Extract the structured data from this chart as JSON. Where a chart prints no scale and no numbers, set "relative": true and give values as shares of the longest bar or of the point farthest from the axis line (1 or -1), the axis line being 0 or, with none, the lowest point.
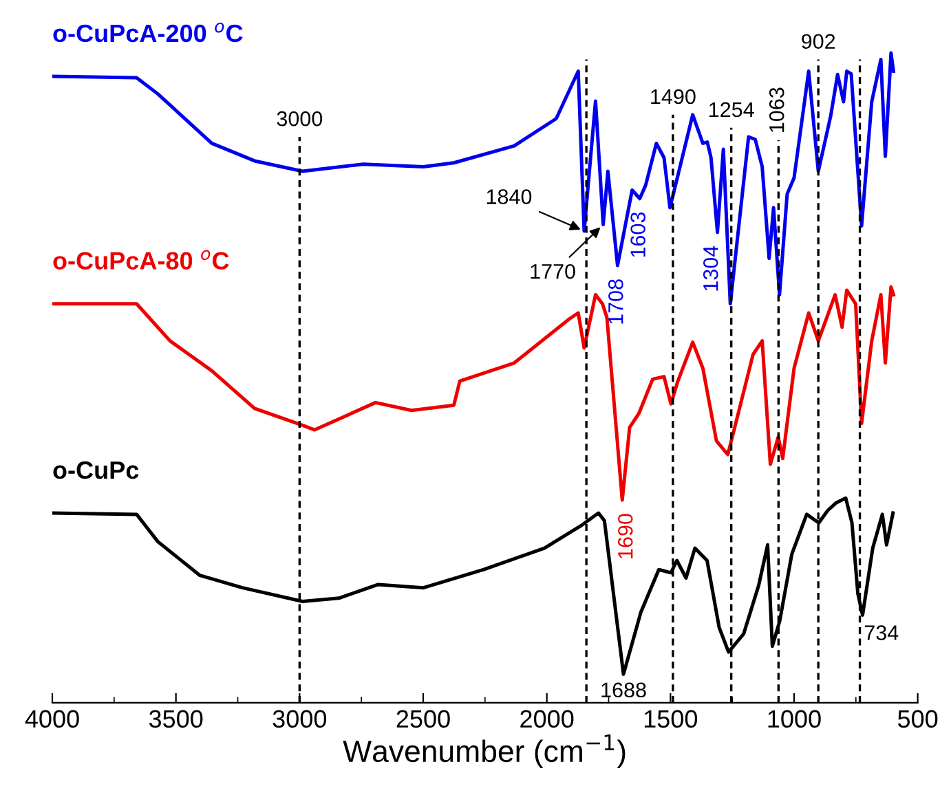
{
  "chart_data": {
    "type": "line",
    "relative": true,
    "xlabel": "Wavenumber (cm$^{−1}$)",
    "xlim": [
      4000,
      500
    ],
    "xticks": [
      4000,
      3500,
      3000,
      2500,
      2000,
      1500,
      1000,
      500
    ],
    "legend": false,
    "grid": false,
    "marker": "none",
    "line_style": "solid",
    "series": [
      {
        "name": "o-CuPcA-200 $^{o}$C",
        "color": "#0000ee",
        "x": [
          4000,
          3659,
          3573,
          3355,
          3182,
          2988,
          2742,
          2499,
          2376,
          2132,
          1962,
          1873,
          1849,
          1803,
          1772,
          1753,
          1714,
          1655,
          1624,
          1600,
          1557,
          1526,
          1502,
          1471,
          1410,
          1369,
          1351,
          1336,
          1310,
          1286,
          1258,
          1184,
          1157,
          1129,
          1101,
          1083,
          1059,
          1028,
          1000,
          941,
          902,
          852,
          824,
          800,
          787,
          769,
          727,
          686,
          649,
          631,
          608,
          598
        ],
        "values": [
          0.964,
          0.962,
          0.937,
          0.861,
          0.834,
          0.818,
          0.829,
          0.825,
          0.831,
          0.857,
          0.899,
          0.972,
          0.726,
          0.926,
          0.736,
          0.818,
          0.673,
          0.789,
          0.776,
          0.797,
          0.861,
          0.839,
          0.762,
          0.81,
          0.905,
          0.861,
          0.863,
          0.839,
          0.724,
          0.852,
          0.614,
          0.871,
          0.867,
          0.825,
          0.684,
          0.762,
          0.628,
          0.783,
          0.808,
          0.972,
          0.818,
          0.903,
          0.967,
          0.925,
          0.972,
          0.968,
          0.734,
          0.925,
          0.99,
          0.841,
          1.0,
          0.972
        ]
      },
      {
        "name": "o-CuPcA-80 $^{o}$C",
        "color": "#ee0000",
        "x": [
          4000,
          3659,
          3524,
          3355,
          3182,
          2988,
          2939,
          2693,
          2547,
          2376,
          2352,
          2132,
          1908,
          1873,
          1849,
          1803,
          1775,
          1757,
          1695,
          1665,
          1628,
          1572,
          1526,
          1498,
          1471,
          1410,
          1369,
          1314,
          1268,
          1240,
          1166,
          1129,
          1096,
          1064,
          1046,
          1000,
          941,
          902,
          834,
          806,
          787,
          751,
          727,
          686,
          649,
          631,
          608,
          598
        ],
        "values": [
          0.614,
          0.614,
          0.557,
          0.511,
          0.453,
          0.427,
          0.42,
          0.462,
          0.45,
          0.458,
          0.495,
          0.523,
          0.591,
          0.6,
          0.546,
          0.628,
          0.614,
          0.593,
          0.312,
          0.424,
          0.445,
          0.498,
          0.502,
          0.46,
          0.494,
          0.555,
          0.515,
          0.403,
          0.382,
          0.424,
          0.536,
          0.557,
          0.367,
          0.409,
          0.376,
          0.515,
          0.6,
          0.557,
          0.628,
          0.578,
          0.635,
          0.614,
          0.43,
          0.557,
          0.628,
          0.523,
          0.64,
          0.628
        ]
      },
      {
        "name": "o-CuPc",
        "color": "#000000",
        "x": [
          4000,
          3659,
          3573,
          3403,
          3231,
          2988,
          2841,
          2682,
          2499,
          2255,
          2010,
          1864,
          1791,
          1767,
          1690,
          1620,
          1547,
          1498,
          1474,
          1437,
          1401,
          1352,
          1303,
          1265,
          1204,
          1143,
          1107,
          1088,
          1058,
          1009,
          949,
          900,
          864,
          829,
          791,
          766,
          742,
          723,
          682,
          643,
          626,
          600
        ],
        "values": [
          0.292,
          0.29,
          0.248,
          0.196,
          0.177,
          0.156,
          0.161,
          0.182,
          0.177,
          0.205,
          0.238,
          0.272,
          0.292,
          0.28,
          0.044,
          0.139,
          0.205,
          0.2,
          0.219,
          0.192,
          0.238,
          0.219,
          0.116,
          0.078,
          0.106,
          0.181,
          0.243,
          0.087,
          0.126,
          0.229,
          0.29,
          0.277,
          0.296,
          0.308,
          0.315,
          0.277,
          0.168,
          0.135,
          0.238,
          0.29,
          0.243,
          0.292
        ]
      }
    ],
    "ref_lines": [
      {
        "axis": "x",
        "value": 3000,
        "label": "3000",
        "line_style": "dashed",
        "color": "#000000"
      },
      {
        "axis": "x",
        "value": 1840,
        "label": null,
        "line_style": "dashed",
        "color": "#000000"
      },
      {
        "axis": "x",
        "value": 1490,
        "label": "1490",
        "line_style": "dashed",
        "color": "#000000"
      },
      {
        "axis": "x",
        "value": 1254,
        "label": "1254",
        "line_style": "dashed",
        "color": "#000000"
      },
      {
        "axis": "x",
        "value": 1063,
        "label": "1063",
        "line_style": "dashed",
        "color": "#000000"
      },
      {
        "axis": "x",
        "value": 902,
        "label": "902",
        "line_style": "dashed",
        "color": "#000000"
      },
      {
        "axis": "x",
        "value": 734,
        "label": null,
        "line_style": "dashed",
        "color": "#000000"
      }
    ],
    "annotations": [
      {
        "text": "1840",
        "x": 1849,
        "y": 0.726
      },
      {
        "text": "1770",
        "x": 1772,
        "y": 0.736
      },
      {
        "text": "1708",
        "x": 1714,
        "y": 0.673
      },
      {
        "text": "1603",
        "x": 1624,
        "y": 0.776
      },
      {
        "text": "1304",
        "x": 1310,
        "y": 0.724
      },
      {
        "text": "1690",
        "x": 1695,
        "y": 0.312
      },
      {
        "text": "1688",
        "x": 1690,
        "y": 0.044
      },
      {
        "text": "734",
        "x": 723,
        "y": 0.135
      }
    ]
  }
}
